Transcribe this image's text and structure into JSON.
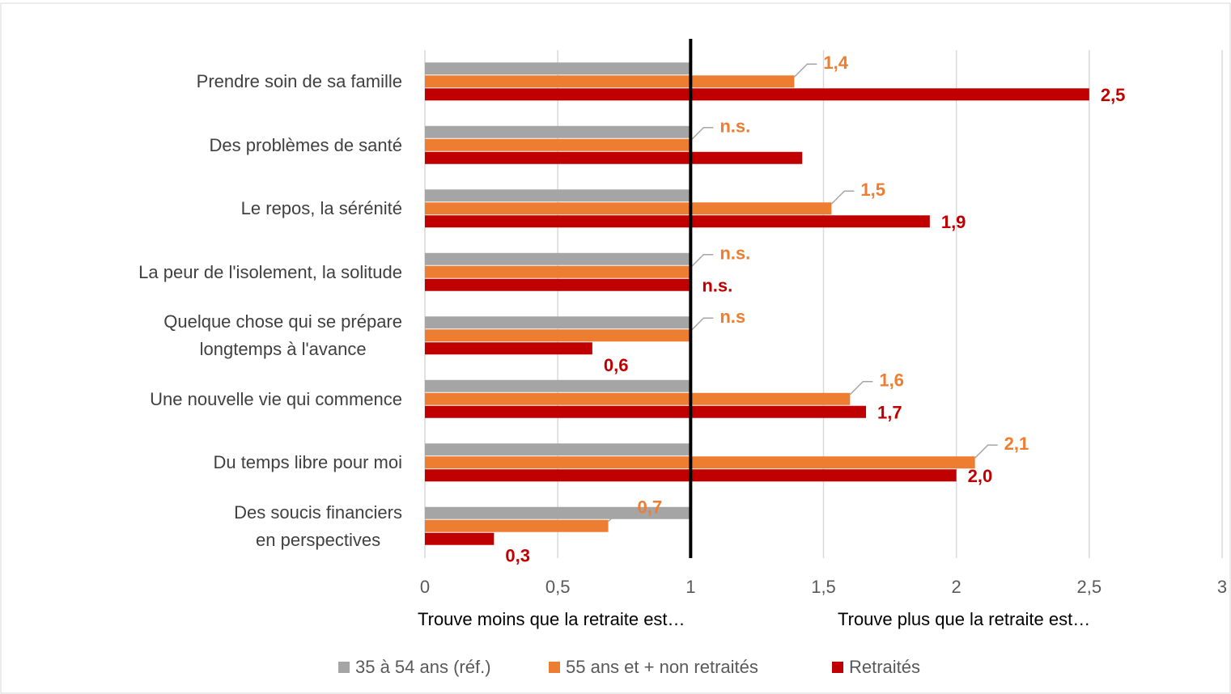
{
  "chart_data": {
    "type": "bar",
    "orientation": "horizontal",
    "categories": [
      "Prendre soin de sa famille",
      "Des problèmes de santé",
      "Le repos, la sérénité",
      "La peur de l'isolement, la solitude",
      "Quelque chose qui se prépare\nlongtemps à l'avance",
      "Une nouvelle vie qui commence",
      "Du temps libre pour moi",
      "Des soucis financiers\nen perspectives"
    ],
    "series": [
      {
        "name": "35 à 54 ans (réf.)",
        "color": "#a5a5a5",
        "values": [
          1,
          1,
          1,
          1,
          1,
          1,
          1,
          1
        ]
      },
      {
        "name": "55 ans et + non retraités",
        "color": "#ed7d31",
        "values": [
          1.39,
          1,
          1.53,
          1,
          1,
          1.6,
          2.07,
          0.69
        ],
        "value_labels": [
          "1,4",
          "n.s.",
          "1,5",
          "n.s.",
          "n.s",
          "1,6",
          "2,1",
          "0,7"
        ]
      },
      {
        "name": "Retraités",
        "color": "#c00000",
        "values": [
          2.5,
          1.42,
          1.9,
          1,
          0.63,
          1.66,
          2.0,
          0.26
        ],
        "value_labels": [
          "2,5",
          null,
          "1,9",
          "n.s.",
          "0,6",
          "1,7",
          "2,0",
          "0,3"
        ]
      }
    ],
    "xlim": [
      0,
      3
    ],
    "xticks": [
      0,
      {
        "value": 0.5,
        "label": "0,5"
      },
      1,
      {
        "value": 1.5,
        "label": "1,5"
      },
      2,
      {
        "value": 2.5,
        "label": "2,5"
      },
      3
    ],
    "reference_line": 1,
    "annotations": [
      "Trouve moins que la retraite est…",
      "Trouve plus que la retraite est…"
    ],
    "grid": true,
    "legend": "bottom"
  }
}
